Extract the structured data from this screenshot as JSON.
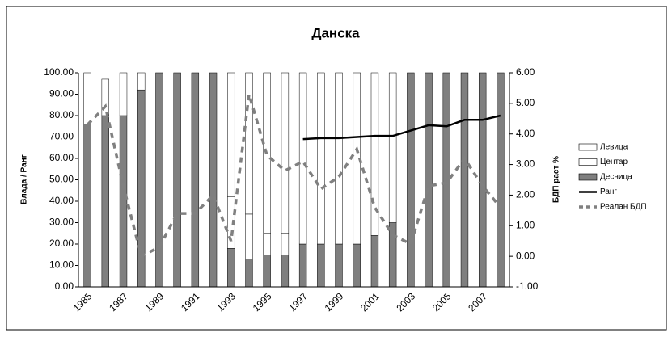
{
  "chart_data": {
    "type": "bar-line",
    "title": "Данска",
    "y_label": "Влада / Ранг",
    "y2_label": "БДП раст %",
    "categories": [
      "1985",
      null,
      "1987",
      null,
      "1989",
      null,
      "1991",
      null,
      "1993",
      null,
      "1995",
      null,
      "1997",
      null,
      "1999",
      null,
      "2001",
      null,
      "2003",
      null,
      "2005",
      null,
      "2007",
      null
    ],
    "series": [
      {
        "name": "Левица",
        "kind": "bar",
        "color": "#ffffff",
        "values": [
          24,
          0,
          20,
          8,
          0,
          0,
          0,
          0,
          58,
          66,
          75,
          75,
          80,
          80,
          80,
          80,
          76,
          70,
          0,
          0,
          0,
          0,
          0,
          0
        ]
      },
      {
        "name": "Центар",
        "kind": "bar",
        "color": "#ffffff",
        "values": [
          0,
          17,
          0,
          0,
          0,
          0,
          0,
          0,
          24,
          21,
          10,
          10,
          0,
          0,
          0,
          0,
          0,
          0,
          0,
          0,
          0,
          0,
          0,
          0
        ]
      },
      {
        "name": "Десница",
        "kind": "bar",
        "color": "#7f7f7f",
        "values": [
          76,
          80,
          80,
          92,
          100,
          100,
          100,
          100,
          18,
          13,
          15,
          15,
          20,
          20,
          20,
          20,
          24,
          30,
          100,
          100,
          100,
          100,
          100,
          100
        ]
      },
      {
        "name": "Ранг",
        "kind": "line",
        "color": "#000000",
        "values": [
          null,
          null,
          null,
          null,
          null,
          null,
          null,
          null,
          null,
          null,
          null,
          null,
          69,
          69.5,
          69.5,
          70,
          70.5,
          70.5,
          73,
          75.5,
          75,
          78,
          78,
          80
        ]
      },
      {
        "name": "Реалан БДП",
        "kind": "dashed",
        "axis": "y2",
        "color": "#808080",
        "values": [
          4.3,
          4.9,
          2.3,
          0.0,
          0.3,
          1.4,
          1.4,
          2.0,
          0.5,
          5.3,
          3.3,
          2.8,
          3.1,
          2.2,
          2.6,
          3.5,
          1.6,
          0.7,
          0.4,
          2.3,
          2.4,
          3.2,
          2.3,
          1.6
        ]
      }
    ],
    "ylim": [
      0,
      100
    ],
    "yticks": [
      {
        "value": 0,
        "label": "0.00"
      },
      {
        "value": 10,
        "label": "10.00"
      },
      {
        "value": 20,
        "label": "20.00"
      },
      {
        "value": 30,
        "label": "30.00"
      },
      {
        "value": 40,
        "label": "40.00"
      },
      {
        "value": 50,
        "label": "50.00"
      },
      {
        "value": 60,
        "label": "60.00"
      },
      {
        "value": 70,
        "label": "70.00"
      },
      {
        "value": 80,
        "label": "80.00"
      },
      {
        "value": 90,
        "label": "90.00"
      },
      {
        "value": 100,
        "label": "100.00"
      }
    ],
    "y2lim": [
      -1,
      6
    ],
    "y2ticks": [
      {
        "value": -1,
        "label": "-1.00"
      },
      {
        "value": 0,
        "label": "0.00"
      },
      {
        "value": 1,
        "label": "1.00"
      },
      {
        "value": 2,
        "label": "2.00"
      },
      {
        "value": 3,
        "label": "3.00"
      },
      {
        "value": 4,
        "label": "4.00"
      },
      {
        "value": 5,
        "label": "5.00"
      },
      {
        "value": 6,
        "label": "6.00"
      }
    ],
    "legend": "right"
  }
}
